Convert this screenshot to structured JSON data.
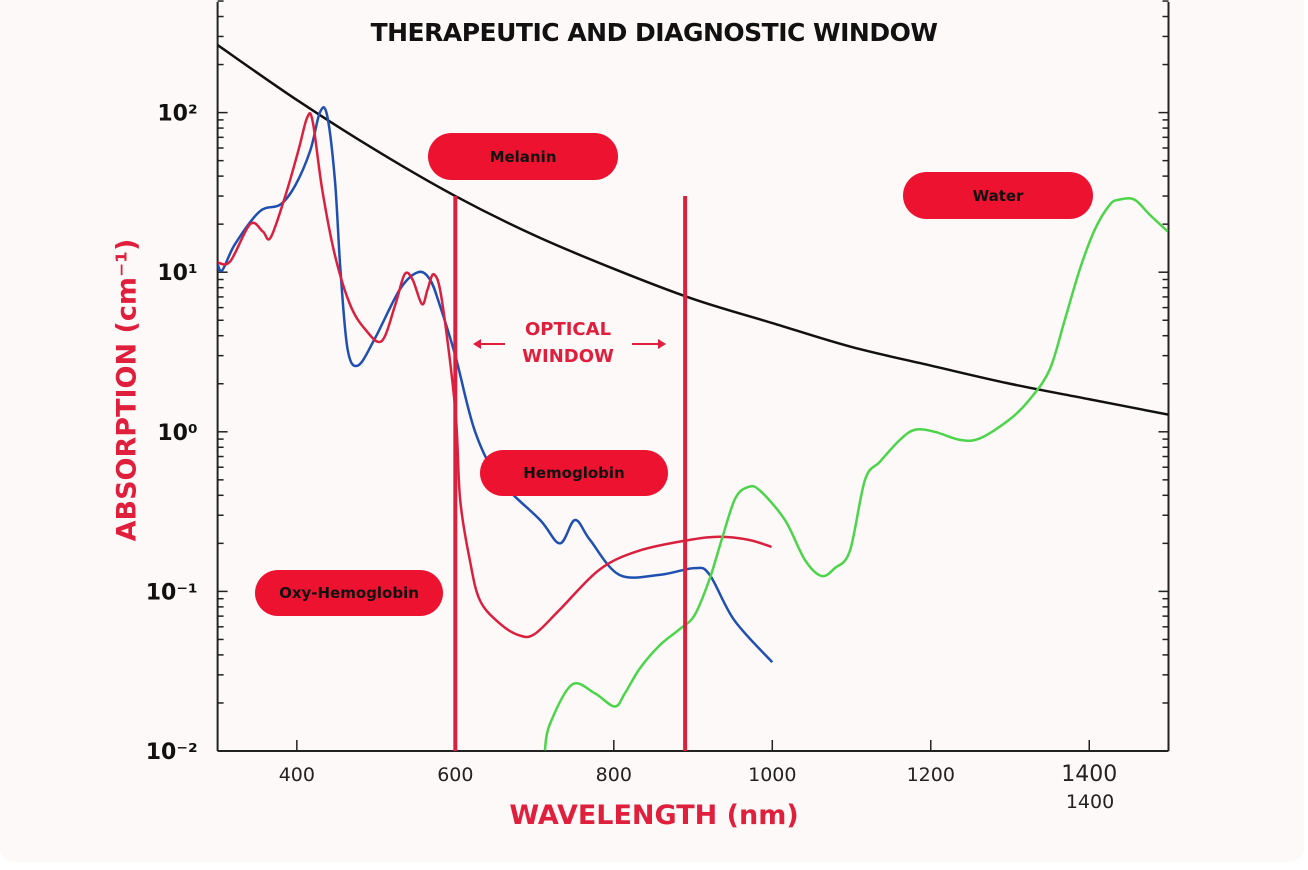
{
  "chart_data": {
    "type": "line",
    "title": "THERAPEUTIC AND DIAGNOSTIC WINDOW",
    "xlabel": "WAVELENGTH (nm)",
    "ylabel": "ABSORPTION (cm⁻¹)",
    "xlim": [
      300,
      1500
    ],
    "ylim": [
      0.01,
      500
    ],
    "yscale": "log",
    "grid": false,
    "xticks": [
      400,
      600,
      800,
      1000,
      1200,
      1400
    ],
    "xtick_labels": [
      "400",
      "600",
      "800",
      "1000",
      "1200",
      "1400"
    ],
    "extra_xtick_label": "1400",
    "yticks": [
      0.01,
      0.1,
      1,
      10,
      100
    ],
    "ytick_labels": [
      "10⁻²",
      "10⁻¹",
      "10⁰",
      "10¹",
      "10²"
    ],
    "series": [
      {
        "name": "Melanin",
        "color": "#111111",
        "points": [
          [
            300,
            265
          ],
          [
            400,
            120
          ],
          [
            500,
            58
          ],
          [
            600,
            30
          ],
          [
            700,
            17
          ],
          [
            800,
            10.5
          ],
          [
            900,
            6.8
          ],
          [
            1000,
            4.8
          ],
          [
            1100,
            3.4
          ],
          [
            1200,
            2.6
          ],
          [
            1300,
            2.0
          ],
          [
            1400,
            1.6
          ],
          [
            1500,
            1.28
          ]
        ]
      },
      {
        "name": "Hemoglobin",
        "color": "#1f4fb0",
        "points": [
          [
            300,
            11.2
          ],
          [
            306,
            10.3
          ],
          [
            322,
            15
          ],
          [
            353,
            24
          ],
          [
            379,
            26.5
          ],
          [
            398,
            35
          ],
          [
            417,
            58
          ],
          [
            429,
            100
          ],
          [
            438,
            97
          ],
          [
            448,
            38
          ],
          [
            455,
            10.4
          ],
          [
            464,
            3.3
          ],
          [
            477,
            2.6
          ],
          [
            498,
            3.8
          ],
          [
            530,
            7.8
          ],
          [
            553,
            10
          ],
          [
            568,
            9
          ],
          [
            580,
            6.3
          ],
          [
            600,
            3.0
          ],
          [
            625,
            1.0
          ],
          [
            656,
            0.5
          ],
          [
            707,
            0.28
          ],
          [
            732,
            0.2
          ],
          [
            751,
            0.28
          ],
          [
            770,
            0.21
          ],
          [
            807,
            0.127
          ],
          [
            858,
            0.127
          ],
          [
            902,
            0.14
          ],
          [
            921,
            0.127
          ],
          [
            952,
            0.066
          ],
          [
            1000,
            0.036
          ]
        ]
      },
      {
        "name": "Oxy-Hemoglobin",
        "color": "#d9213f",
        "points": [
          [
            300,
            11.5
          ],
          [
            316,
            11.7
          ],
          [
            341,
            20
          ],
          [
            357,
            18
          ],
          [
            367,
            16.5
          ],
          [
            386,
            30.7
          ],
          [
            402,
            58
          ],
          [
            413,
            93
          ],
          [
            420,
            88
          ],
          [
            432,
            33
          ],
          [
            448,
            12.8
          ],
          [
            467,
            6.3
          ],
          [
            486,
            4.4
          ],
          [
            507,
            3.7
          ],
          [
            524,
            6.2
          ],
          [
            536,
            9.7
          ],
          [
            546,
            9
          ],
          [
            558,
            6.3
          ],
          [
            565,
            7.8
          ],
          [
            573,
            9.7
          ],
          [
            583,
            6.7
          ],
          [
            600,
            1.37
          ],
          [
            606,
            0.38
          ],
          [
            618,
            0.16
          ],
          [
            631,
            0.088
          ],
          [
            656,
            0.063
          ],
          [
            681,
            0.053
          ],
          [
            700,
            0.054
          ],
          [
            732,
            0.077
          ],
          [
            782,
            0.137
          ],
          [
            832,
            0.18
          ],
          [
            895,
            0.21
          ],
          [
            933,
            0.22
          ],
          [
            971,
            0.21
          ],
          [
            999,
            0.19
          ]
        ]
      },
      {
        "name": "Water",
        "color": "#4cd44a",
        "points": [
          [
            713,
            0.0101
          ],
          [
            719,
            0.0146
          ],
          [
            747,
            0.026
          ],
          [
            776,
            0.023
          ],
          [
            801,
            0.019
          ],
          [
            814,
            0.023
          ],
          [
            833,
            0.033
          ],
          [
            858,
            0.046
          ],
          [
            883,
            0.058
          ],
          [
            902,
            0.071
          ],
          [
            921,
            0.12
          ],
          [
            936,
            0.21
          ],
          [
            953,
            0.38
          ],
          [
            969,
            0.45
          ],
          [
            984,
            0.43
          ],
          [
            1016,
            0.28
          ],
          [
            1041,
            0.158
          ],
          [
            1062,
            0.125
          ],
          [
            1079,
            0.14
          ],
          [
            1098,
            0.18
          ],
          [
            1117,
            0.5
          ],
          [
            1136,
            0.65
          ],
          [
            1161,
            0.89
          ],
          [
            1180,
            1.03
          ],
          [
            1205,
            1.0
          ],
          [
            1237,
            0.89
          ],
          [
            1262,
            0.91
          ],
          [
            1300,
            1.2
          ],
          [
            1325,
            1.6
          ],
          [
            1350,
            2.45
          ],
          [
            1369,
            5.0
          ],
          [
            1388,
            10.4
          ],
          [
            1407,
            18.5
          ],
          [
            1426,
            26.5
          ],
          [
            1438,
            28.5
          ],
          [
            1457,
            28.5
          ],
          [
            1476,
            23
          ],
          [
            1499,
            18
          ]
        ]
      }
    ],
    "window_lines": {
      "x": [
        600,
        890
      ],
      "top": 30,
      "color": "#d9213f"
    },
    "annotations": {
      "optical_window": [
        "OPTICAL",
        "WINDOW"
      ],
      "labels": [
        "Melanin",
        "Water",
        "Hemoglobin",
        "Oxy-Hemoglobin"
      ],
      "label_color": "#ec1230",
      "accent_color": "#e01f3d"
    }
  }
}
